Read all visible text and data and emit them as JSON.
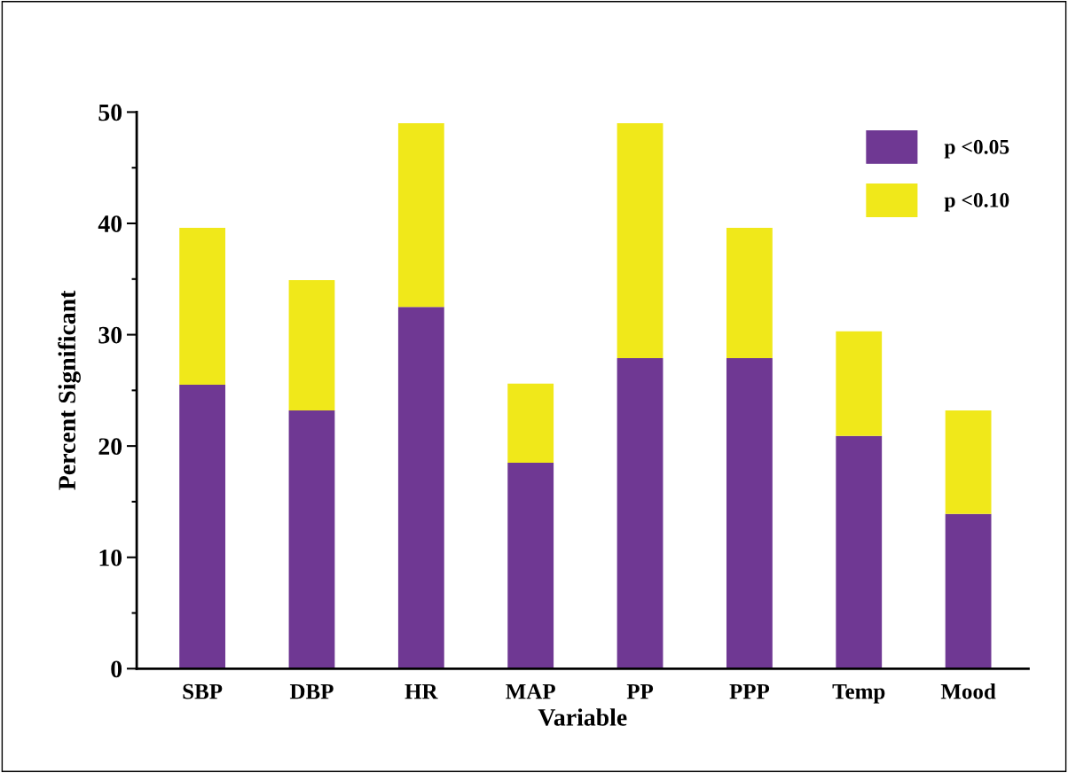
{
  "chart_data": {
    "type": "bar",
    "stacked": true,
    "xlabel": "Variable",
    "ylabel": "Percent Significant",
    "categories": [
      "SBP",
      "DBP",
      "HR",
      "MAP",
      "PP",
      "PPP",
      "Temp",
      "Mood"
    ],
    "series": [
      {
        "name": "p <0.05",
        "color": "#6f3893",
        "values": [
          25.5,
          23.2,
          32.5,
          18.5,
          27.9,
          27.9,
          20.9,
          13.9
        ]
      },
      {
        "name": "p <0.10",
        "color": "#f0e81a",
        "values": [
          14.1,
          11.7,
          16.5,
          7.1,
          21.1,
          11.7,
          9.4,
          9.3
        ]
      }
    ],
    "ylim": [
      0,
      50
    ],
    "yticks": [
      0,
      {
        "value": 5,
        "label": null
      },
      10,
      {
        "value": 15,
        "label": null
      },
      20,
      {
        "value": 25,
        "label": null
      },
      30,
      {
        "value": 35,
        "label": null
      },
      40,
      {
        "value": 45,
        "label": null
      },
      50
    ],
    "legend": "top right",
    "grid": false
  }
}
